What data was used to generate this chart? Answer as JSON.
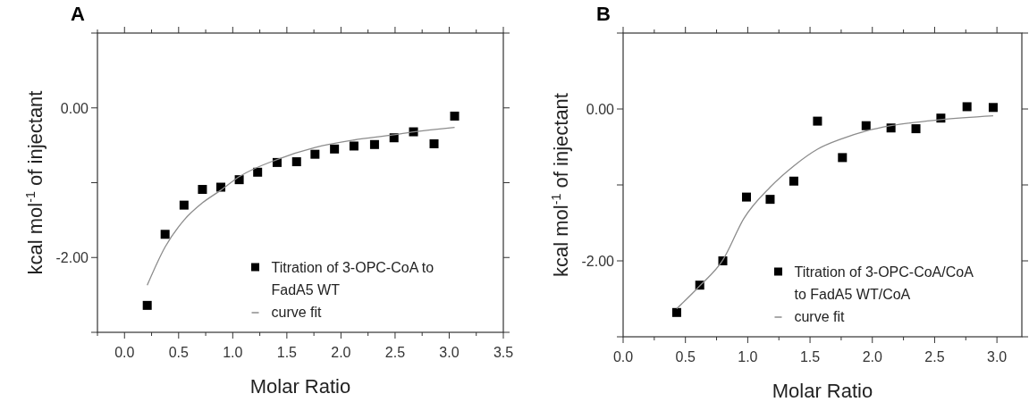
{
  "chart_data": [
    {
      "type": "scatter",
      "title": "A",
      "xlabel": "Molar Ratio",
      "ylabel": "kcal mol$^{-1}$ of injectant",
      "xlim": [
        -0.25,
        3.5
      ],
      "ylim": [
        -3,
        1
      ],
      "xticks": [
        {
          "value": -0.25,
          "label": null
        },
        {
          "value": 0.0,
          "label": "0.0"
        },
        {
          "value": 0.25,
          "label": null
        },
        0.5,
        {
          "value": 0.75,
          "label": null
        },
        {
          "value": 1.0,
          "label": "1.0"
        },
        {
          "value": 1.25,
          "label": null
        },
        1.5,
        {
          "value": 1.75,
          "label": null
        },
        {
          "value": 2.0,
          "label": "2.0"
        },
        {
          "value": 2.25,
          "label": null
        },
        2.5,
        {
          "value": 2.75,
          "label": null
        },
        {
          "value": 3.0,
          "label": "3.0"
        },
        {
          "value": 3.25,
          "label": null
        },
        3.5
      ],
      "yticks": [
        {
          "value": -3,
          "label": null
        },
        {
          "value": -2,
          "label": "-2.00"
        },
        {
          "value": -1,
          "label": null
        },
        {
          "value": 0,
          "label": "0.00"
        },
        {
          "value": 1,
          "label": null
        }
      ],
      "legend": "bottom right",
      "grid": false,
      "series": [
        {
          "name": "Titration of 3-OPC-CoA to FadA5 WT",
          "marker": "square",
          "color": "#000000",
          "x": [
            0.21,
            0.375,
            0.55,
            0.72,
            0.89,
            1.06,
            1.23,
            1.41,
            1.59,
            1.76,
            1.94,
            2.12,
            2.31,
            2.49,
            2.67,
            2.86,
            3.05
          ],
          "values": [
            -2.64,
            -1.69,
            -1.3,
            -1.09,
            -1.06,
            -0.96,
            -0.86,
            -0.73,
            -0.72,
            -0.62,
            -0.55,
            -0.51,
            -0.49,
            -0.4,
            -0.32,
            -0.48,
            -0.11
          ]
        },
        {
          "name": "curve fit",
          "type": "line",
          "marker": "none",
          "line_style": "solid",
          "color": "#8c8c8c",
          "x": [
            0.21,
            0.375,
            0.55,
            0.72,
            0.89,
            1.06,
            1.41,
            1.76,
            2.12,
            2.49,
            2.67,
            3.05
          ],
          "values": [
            -2.37,
            -1.86,
            -1.5,
            -1.27,
            -1.1,
            -0.92,
            -0.69,
            -0.53,
            -0.43,
            -0.36,
            -0.32,
            -0.26
          ]
        }
      ]
    },
    {
      "type": "scatter",
      "title": "B",
      "xlabel": "Molar Ratio",
      "ylabel": "kcal mol$^{-1}$ of injectant",
      "xlim": [
        0,
        3.2
      ],
      "ylim": [
        -3,
        1
      ],
      "xticks": [
        {
          "value": 0.0,
          "label": "0.0"
        },
        {
          "value": 0.25,
          "label": null
        },
        0.5,
        {
          "value": 0.75,
          "label": null
        },
        {
          "value": 1.0,
          "label": "1.0"
        },
        {
          "value": 1.25,
          "label": null
        },
        1.5,
        {
          "value": 1.75,
          "label": null
        },
        {
          "value": 2.0,
          "label": "2.0"
        },
        {
          "value": 2.25,
          "label": null
        },
        2.5,
        {
          "value": 2.75,
          "label": null
        },
        {
          "value": 3.0,
          "label": "3.0"
        }
      ],
      "yticks": [
        {
          "value": -3,
          "label": null
        },
        {
          "value": -2,
          "label": "-2.00"
        },
        {
          "value": -1,
          "label": null
        },
        {
          "value": 0,
          "label": "0.00"
        },
        {
          "value": 1,
          "label": null
        }
      ],
      "legend": "bottom right",
      "grid": false,
      "series": [
        {
          "name": "Titration of 3-OPC-CoA/CoA to FadA5 WT/CoA",
          "marker": "square",
          "color": "#000000",
          "x": [
            0.43,
            0.615,
            0.8,
            0.99,
            1.18,
            1.37,
            1.56,
            1.76,
            1.95,
            2.15,
            2.35,
            2.55,
            2.76,
            2.97
          ],
          "values": [
            -2.68,
            -2.32,
            -2.0,
            -1.16,
            -1.19,
            -0.95,
            -0.16,
            -0.64,
            -0.22,
            -0.25,
            -0.26,
            -0.12,
            0.03,
            0.02
          ]
        },
        {
          "name": "curve fit",
          "type": "line",
          "marker": "none",
          "line_style": "solid",
          "color": "#8c8c8c",
          "x": [
            0.43,
            0.615,
            0.8,
            0.97,
            1.18,
            1.37,
            1.56,
            1.76,
            1.95,
            2.15,
            2.55,
            2.97
          ],
          "values": [
            -2.63,
            -2.33,
            -1.99,
            -1.44,
            -1.03,
            -0.75,
            -0.53,
            -0.39,
            -0.29,
            -0.22,
            -0.14,
            -0.09
          ]
        }
      ]
    }
  ]
}
